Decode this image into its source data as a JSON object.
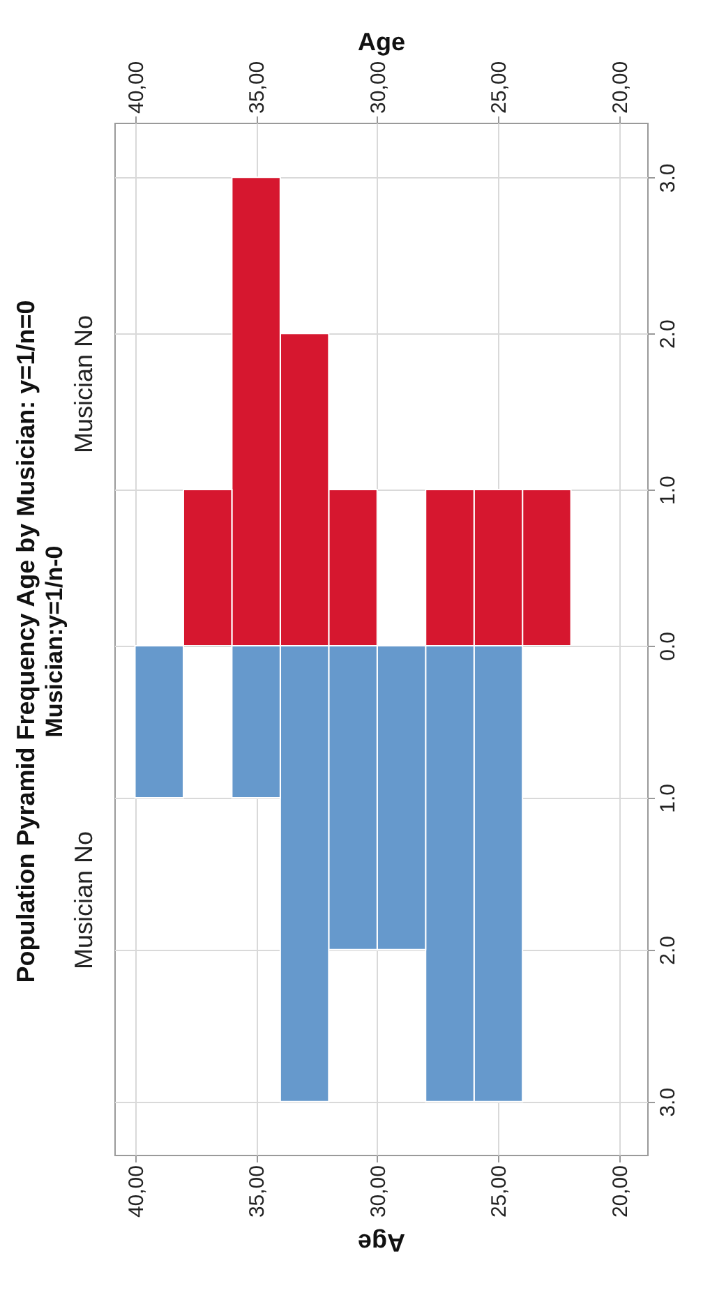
{
  "chart_data": [
    {
      "type": "histogram",
      "title": "Population Pyramid Frequency Age by Musician: y=1/n=0",
      "subtitle": "Musician:y=1/n-0",
      "xlabel": "Age",
      "grid": true,
      "bins": [
        22,
        24,
        26,
        28,
        30,
        32,
        34,
        36,
        38,
        40
      ],
      "series": [
        {
          "name": "Musician No",
          "color": "#d6172f",
          "values": [
            1,
            1,
            1,
            0,
            1,
            2,
            3,
            1,
            0
          ]
        }
      ],
      "xlim": [
        40.85,
        18.85
      ],
      "xticks": [
        {
          "value": 20,
          "label": "20,00"
        },
        {
          "value": 25,
          "label": "25,00"
        },
        {
          "value": 30,
          "label": "30,00"
        },
        {
          "value": 35,
          "label": "35,00"
        },
        {
          "value": 40,
          "label": "40,00"
        }
      ],
      "ylim": [
        0,
        3.35
      ],
      "yticks": [
        {
          "value": 0,
          "label": "0.0"
        },
        {
          "value": 1,
          "label": "1.0"
        },
        {
          "value": 2,
          "label": "2.0"
        },
        {
          "value": 3,
          "label": "3.0"
        }
      ]
    },
    {
      "type": "histogram",
      "xlabel": "Age",
      "grid": true,
      "bins": [
        22,
        24,
        26,
        28,
        30,
        32,
        34,
        36,
        38,
        40
      ],
      "series": [
        {
          "name": "Musician No",
          "color": "#6699cc",
          "values": [
            0,
            3,
            3,
            2,
            2,
            3,
            1,
            0,
            1
          ]
        }
      ],
      "xlim": [
        40.85,
        18.85
      ],
      "xticks": [
        {
          "value": 20,
          "label": "20,00"
        },
        {
          "value": 25,
          "label": "25,00"
        },
        {
          "value": 30,
          "label": "30,00"
        },
        {
          "value": 35,
          "label": "35,00"
        },
        {
          "value": 40,
          "label": "40,00"
        }
      ],
      "ylim": [
        3.35,
        0
      ],
      "yticks": [
        {
          "value": 0,
          "label": null
        },
        {
          "value": 1,
          "label": "1.0"
        },
        {
          "value": 2,
          "label": "2.0"
        },
        {
          "value": 3,
          "label": "3.0"
        }
      ]
    }
  ]
}
